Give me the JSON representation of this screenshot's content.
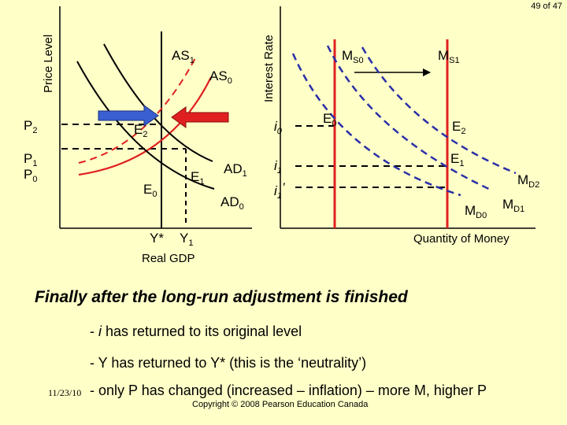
{
  "slide": {
    "page_number": "49 of 47",
    "heading": "Finally after the long-run adjustment is finished",
    "bullets": [
      {
        "prefix": "- ",
        "italic": "i",
        "text": " has returned to its original level"
      },
      {
        "prefix": "- ",
        "italic": "",
        "text": "Y has returned to Y* (this is the ‘neutrality’)"
      },
      {
        "prefix": "- ",
        "italic": "",
        "text": "only P has changed (increased – inflation) – more M, higher P"
      }
    ],
    "date": "11/23/10",
    "copyright": "Copyright © 2008 Pearson Education Canada"
  },
  "left_graph": {
    "y_axis_label": "Price Level",
    "x_axis_label": "Real GDP",
    "price_labels": [
      {
        "main": "P",
        "sub": "2"
      },
      {
        "main": "P",
        "sub": "1"
      },
      {
        "main": "P",
        "sub": "0"
      }
    ],
    "output_labels": [
      {
        "main": "Y*",
        "sub": ""
      },
      {
        "main": "Y",
        "sub": "1"
      }
    ],
    "curves": [
      {
        "main": "AS",
        "sub": "1",
        "color": "#000000"
      },
      {
        "main": "AS",
        "sub": "0",
        "color": "#000000"
      },
      {
        "main": "AD",
        "sub": "1",
        "color": "#000000"
      },
      {
        "main": "AD",
        "sub": "0",
        "color": "#000000"
      }
    ],
    "equilibria": [
      {
        "main": "E",
        "sub": "2"
      },
      {
        "main": "E",
        "sub": "1"
      },
      {
        "main": "E",
        "sub": "0"
      }
    ]
  },
  "right_graph": {
    "y_axis_label": "Interest Rate",
    "x_axis_label": "Quantity of Money",
    "rate_labels": [
      {
        "main": "i",
        "sub": "0",
        "suffix": ""
      },
      {
        "main": "i",
        "sub": "1",
        "suffix": ""
      },
      {
        "main": "i",
        "sub": "1",
        "suffix": "’"
      }
    ],
    "supply_curves": [
      {
        "main": "M",
        "sub": "S0"
      },
      {
        "main": "M",
        "sub": "S1"
      }
    ],
    "demand_curves": [
      {
        "main": "M",
        "sub": "D2"
      },
      {
        "main": "M",
        "sub": "D1"
      },
      {
        "main": "M",
        "sub": "D0"
      }
    ],
    "equilibria": [
      {
        "main": "E",
        "sub": "0"
      },
      {
        "main": "E",
        "sub": "2"
      },
      {
        "main": "E",
        "sub": "1"
      }
    ]
  },
  "colors": {
    "background": "#ffffc8",
    "supply": "#e02020",
    "demand": "#2a2fa8",
    "arrow_right": "#3a5fd0",
    "arrow_left": "#e02020",
    "frame": "#000000"
  }
}
